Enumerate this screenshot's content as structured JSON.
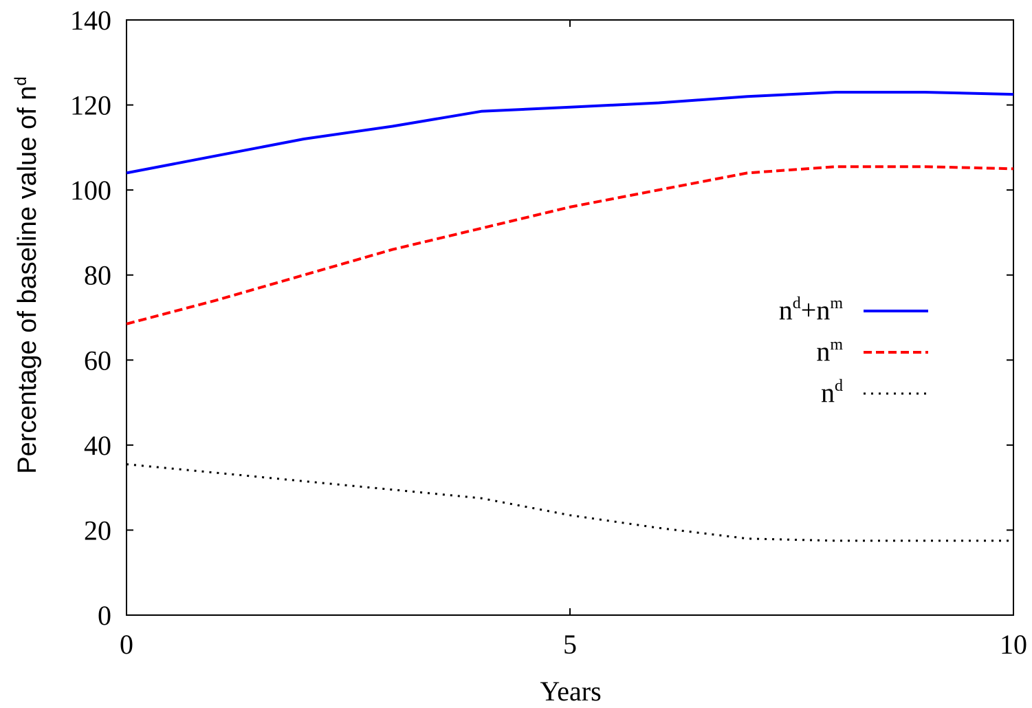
{
  "chart_data": {
    "type": "line",
    "title": "",
    "xlabel": "Years",
    "ylabel": {
      "text": "Percentage of baseline value of n",
      "superscript": "d"
    },
    "xlim": [
      0,
      10
    ],
    "ylim": [
      0,
      140
    ],
    "x_ticks": [
      "0",
      "5",
      "10"
    ],
    "y_ticks": [
      "0",
      "20",
      "40",
      "60",
      "80",
      "100",
      "120",
      "140"
    ],
    "grid": false,
    "legend_position": "right",
    "series": [
      {
        "name": "n^d+n^m",
        "legend": {
          "parts": [
            {
              "t": "n"
            },
            {
              "t": "d",
              "sup": true
            },
            {
              "t": "+n"
            },
            {
              "t": "m",
              "sup": true
            }
          ]
        },
        "color": "#0000ff",
        "style": "solid",
        "x": [
          0,
          1,
          2,
          3,
          4,
          5,
          6,
          7,
          8,
          9,
          10
        ],
        "y": [
          104,
          108,
          112,
          115,
          118.5,
          119.5,
          120.5,
          122,
          123,
          123,
          122.5
        ]
      },
      {
        "name": "n^m",
        "legend": {
          "parts": [
            {
              "t": "n"
            },
            {
              "t": "m",
              "sup": true
            }
          ]
        },
        "color": "#ff0000",
        "style": "dashed",
        "x": [
          0,
          1,
          2,
          3,
          4,
          5,
          6,
          7,
          8,
          9,
          10
        ],
        "y": [
          68.5,
          74,
          80,
          86,
          91,
          96,
          100,
          104,
          105.5,
          105.5,
          105
        ]
      },
      {
        "name": "n^d",
        "legend": {
          "parts": [
            {
              "t": "n"
            },
            {
              "t": "d",
              "sup": true
            }
          ]
        },
        "color": "#000000",
        "style": "dotted",
        "x": [
          0,
          1,
          2,
          3,
          4,
          5,
          6,
          7,
          8,
          9,
          10
        ],
        "y": [
          35.5,
          33.5,
          31.5,
          29.5,
          27.5,
          23.5,
          20.5,
          18,
          17.5,
          17.5,
          17.5
        ]
      }
    ]
  }
}
